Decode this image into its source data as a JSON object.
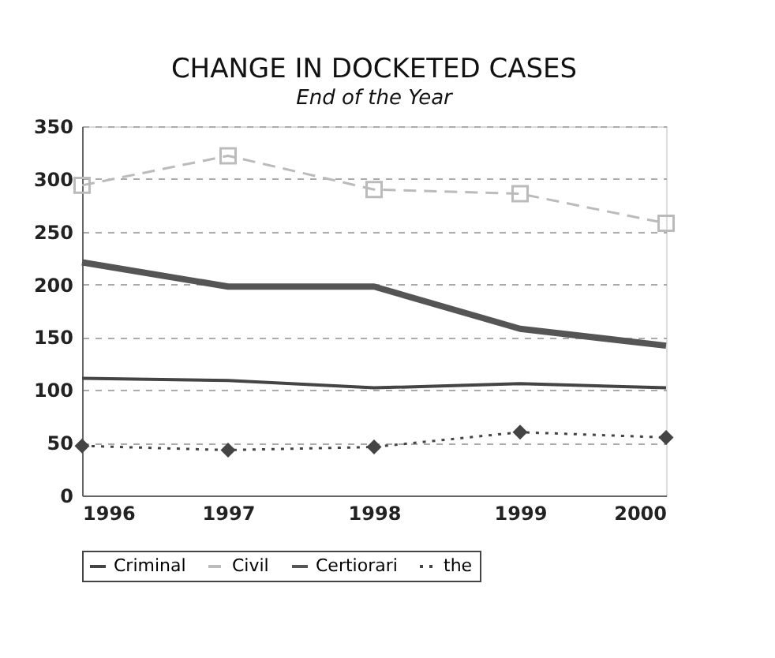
{
  "chart_data": {
    "type": "line",
    "title": "CHANGE IN DOCKETED CASES",
    "subtitle": "End of the Year",
    "x": [
      1996,
      1997,
      1998,
      1999,
      2000
    ],
    "series": [
      {
        "name": "Criminal",
        "color": "#444444",
        "values": [
          111,
          109,
          102,
          106,
          102
        ],
        "marker": "none",
        "line_style": "solid"
      },
      {
        "name": "Civil",
        "color": "#bbbbbb",
        "values": [
          294,
          322,
          290,
          286,
          258
        ],
        "marker": "square",
        "line_style": "dashed"
      },
      {
        "name": "Certiorari",
        "color": "#555555",
        "values": [
          221,
          198,
          198,
          158,
          142
        ],
        "marker": "none",
        "line_style": "solid"
      },
      {
        "name": "the",
        "color": "#444444",
        "values": [
          47,
          43,
          46,
          60,
          55
        ],
        "marker": "diamond",
        "line_style": "dotted"
      }
    ],
    "xlim": [
      1996,
      2000
    ],
    "xticks": [
      1996,
      1997,
      1998,
      1999,
      2000
    ],
    "ylim": [
      0,
      350
    ],
    "yticks": [
      0,
      50,
      100,
      150,
      200,
      250,
      300,
      350
    ],
    "grid": "y",
    "legend": "bottom"
  }
}
